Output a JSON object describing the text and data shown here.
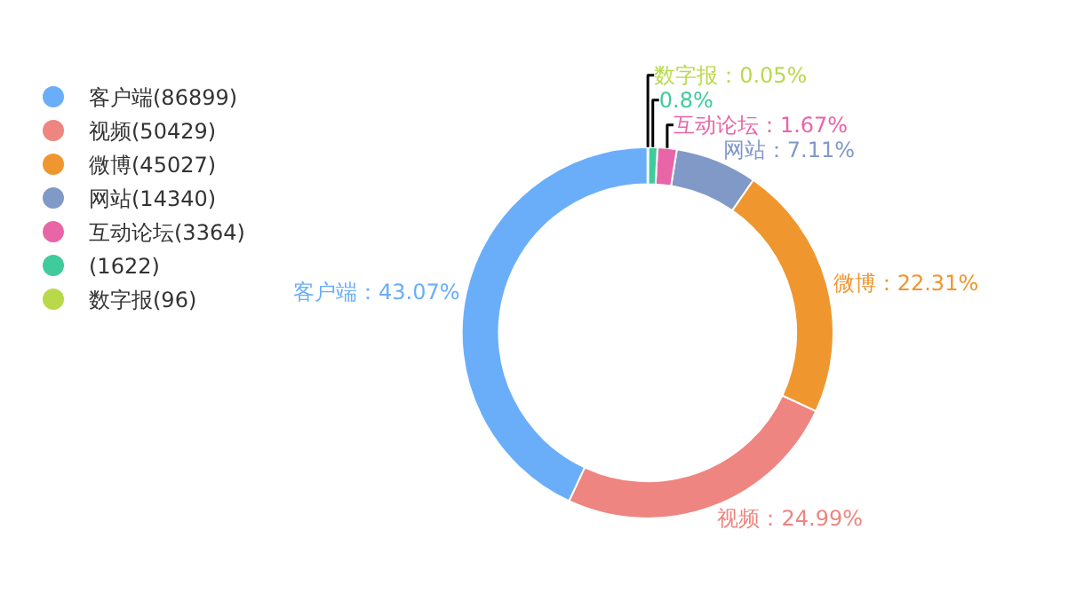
{
  "chart_data": {
    "type": "donut",
    "categories": [
      "客户端(86899)",
      "视频(50429)",
      "微博(45027)",
      "网站(14340)",
      "互动论坛(3364)",
      "(1622)",
      "数字报(96)"
    ],
    "values": [
      43.07,
      24.99,
      22.31,
      7.11,
      1.67,
      0.8,
      0.05
    ],
    "colors": [
      "#6aaefa",
      "#ee8580",
      "#ef962f",
      "#8199c6",
      "#e865a8",
      "#3fcb9b",
      "#b9d94b"
    ],
    "value_labels": [
      "客户端：43.07%",
      "视频：24.99%",
      "微博：22.31%",
      "网站：7.11%",
      "互动论坛：1.67%",
      "0.8%",
      "数字报：0.05%"
    ],
    "legend": "top left"
  }
}
